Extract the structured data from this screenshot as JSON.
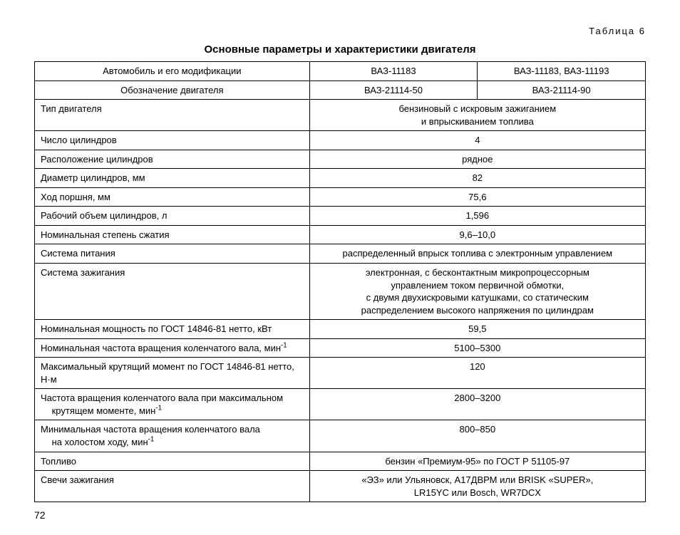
{
  "header": {
    "table_label": "Таблица 6",
    "title": "Основные параметры и характеристики двигателя"
  },
  "columns": {
    "param_header1": "Автомобиль и его модификации",
    "param_header2": "Обозначение двигателя",
    "v1_header1": "ВАЗ-11183",
    "v2_header1": "ВАЗ-11183, ВАЗ-11193",
    "v1_header2": "ВАЗ-21114-50",
    "v2_header2": "ВАЗ-21114-90"
  },
  "rows": {
    "engine_type": {
      "label": "Тип двигателя",
      "value_line1": "бензиновый с искровым зажиганием",
      "value_line2": "и впрыскиванием топлива"
    },
    "cylinders": {
      "label": "Число цилиндров",
      "value": "4"
    },
    "layout": {
      "label": "Расположение цилиндров",
      "value": "рядное"
    },
    "bore": {
      "label": "Диаметр цилиндров, мм",
      "value": "82"
    },
    "stroke": {
      "label": "Ход поршня, мм",
      "value": "75,6"
    },
    "displacement": {
      "label": "Рабочий объем цилиндров, л",
      "value": "1,596"
    },
    "compression": {
      "label": "Номинальная степень сжатия",
      "value": "9,6–10,0"
    },
    "fuel_system": {
      "label": "Система питания",
      "value": "распределенный впрыск топлива с электронным управлением"
    },
    "ignition": {
      "label": "Система зажигания",
      "value_line1": "электронная, с бесконтактным микропроцессорным",
      "value_line2": "управлением током первичной обмотки,",
      "value_line3": "с двумя двухискровыми катушками, со статическим",
      "value_line4": "распределением высокого напряжения по цилиндрам"
    },
    "power": {
      "label": "Номинальная мощность по ГОСТ 14846-81 нетто, кВт",
      "value": "59,5"
    },
    "rpm_nominal": {
      "label_pre": "Номинальная частота вращения коленчатого вала, мин",
      "label_sup": "-1",
      "value": "5100–5300"
    },
    "torque": {
      "label": "Максимальный крутящий момент по ГОСТ 14846-81 нетто, Н·м",
      "value": "120"
    },
    "rpm_maxtorque": {
      "label_line1": "Частота вращения коленчатого вала при максимальном",
      "label_line2_pre": "крутящем моменте, мин",
      "label_sup": "-1",
      "value": "2800–3200"
    },
    "rpm_idle": {
      "label_line1": "Минимальная частота вращения коленчатого вала",
      "label_line2_pre": "на холостом ходу, мин",
      "label_sup": "-1",
      "value": "800–850"
    },
    "fuel": {
      "label": "Топливо",
      "value": "бензин «Премиум-95» по ГОСТ Р 51105-97"
    },
    "spark": {
      "label": "Свечи зажигания",
      "value_line1": "«ЭЗ» или Ульяновск, А17ДВРМ или BRISK «SUPER»,",
      "value_line2": "LR15YC или Bosch, WR7DCX"
    }
  },
  "footer": {
    "page_number": "72"
  },
  "style": {
    "text_color": "#000000",
    "background_color": "#ffffff",
    "border_color": "#000000",
    "title_fontsize": 15,
    "body_fontsize": 13,
    "table_label_letter_spacing": 2
  }
}
